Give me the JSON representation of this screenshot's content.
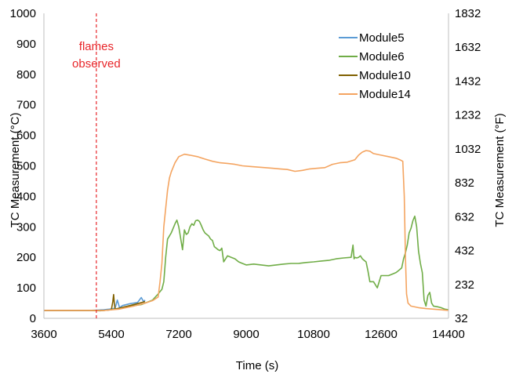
{
  "chart_data": {
    "type": "line",
    "title": "",
    "xlabel": "Time (s)",
    "ylabel": "TC Measurement (°C)",
    "y2label": "TC Measurement (°F)",
    "xlim": [
      3600,
      14400
    ],
    "ylim": [
      0,
      1000
    ],
    "y2lim": [
      32,
      1832
    ],
    "xticks": [
      "3600",
      "5400",
      "7200",
      "9000",
      "10800",
      "12600",
      "14400"
    ],
    "yticks": [
      "0",
      "100",
      "200",
      "300",
      "400",
      "500",
      "600",
      "700",
      "800",
      "900",
      "1000"
    ],
    "y2ticks": [
      "32",
      "232",
      "432",
      "632",
      "832",
      "1032",
      "1232",
      "1432",
      "1632",
      "1832"
    ],
    "grid": false,
    "legend_position": "top-right",
    "annotation": {
      "lines": [
        "flames",
        "observed"
      ],
      "x": 5000,
      "color": "#e8262a"
    },
    "series": [
      {
        "name": "Module5",
        "color": "#5b9bd5",
        "x": [
          3600,
          4800,
          5000,
          5200,
          5350,
          5500,
          5560,
          5620,
          5700,
          5900,
          6100,
          6200,
          6260,
          6300
        ],
        "y": [
          26,
          26,
          27,
          28,
          30,
          33,
          60,
          35,
          42,
          48,
          52,
          68,
          55,
          60
        ]
      },
      {
        "name": "Module6",
        "color": "#70ad47",
        "x": [
          3600,
          4800,
          5100,
          5300,
          5500,
          5800,
          6200,
          6500,
          6650,
          6750,
          6800,
          6850,
          6900,
          7000,
          7100,
          7150,
          7200,
          7300,
          7350,
          7400,
          7450,
          7500,
          7550,
          7600,
          7650,
          7700,
          7750,
          7800,
          7850,
          7900,
          8000,
          8050,
          8100,
          8150,
          8200,
          8250,
          8300,
          8350,
          8400,
          8500,
          8600,
          8700,
          8800,
          8900,
          9000,
          9200,
          9400,
          9600,
          9800,
          10000,
          10200,
          10400,
          10600,
          10800,
          11000,
          11200,
          11400,
          11600,
          11800,
          11850,
          11880,
          11900,
          11950,
          12000,
          12050,
          12100,
          12150,
          12200,
          12250,
          12300,
          12400,
          12500,
          12600,
          12700,
          12800,
          12900,
          13000,
          13050,
          13100,
          13150,
          13200,
          13250,
          13300,
          13350,
          13400,
          13450,
          13500,
          13550,
          13600,
          13650,
          13700,
          13750,
          13800,
          13850,
          13900,
          13950,
          14000,
          14100,
          14200,
          14300,
          14400
        ],
        "y": [
          26,
          26,
          25,
          27,
          30,
          38,
          45,
          60,
          80,
          95,
          120,
          200,
          260,
          280,
          310,
          322,
          300,
          225,
          290,
          275,
          280,
          300,
          310,
          305,
          320,
          322,
          318,
          305,
          290,
          280,
          270,
          260,
          255,
          235,
          230,
          225,
          222,
          230,
          185,
          205,
          200,
          195,
          185,
          180,
          175,
          178,
          175,
          172,
          175,
          178,
          180,
          180,
          183,
          185,
          188,
          190,
          195,
          198,
          200,
          240,
          195,
          200,
          198,
          200,
          205,
          195,
          190,
          185,
          155,
          120,
          120,
          100,
          140,
          140,
          140,
          145,
          150,
          155,
          160,
          165,
          195,
          215,
          240,
          280,
          295,
          320,
          335,
          300,
          220,
          180,
          150,
          60,
          40,
          75,
          85,
          50,
          40,
          38,
          35,
          30,
          28
        ]
      },
      {
        "name": "Module10",
        "color": "#806000",
        "x": [
          3600,
          4800,
          5000,
          5200,
          5300,
          5400,
          5440,
          5460,
          5480,
          5500,
          5560,
          5700,
          5900,
          6100,
          6300
        ],
        "y": [
          26,
          26,
          26,
          26,
          27,
          28,
          55,
          78,
          50,
          30,
          32,
          36,
          42,
          48,
          55
        ]
      },
      {
        "name": "Module14",
        "color": "#f4a460",
        "x": [
          3600,
          4800,
          5200,
          5600,
          6000,
          6300,
          6500,
          6650,
          6700,
          6750,
          6800,
          6850,
          6900,
          6950,
          7000,
          7100,
          7200,
          7350,
          7500,
          7700,
          7900,
          8100,
          8300,
          8500,
          8700,
          8900,
          9100,
          9300,
          9500,
          9700,
          9900,
          10100,
          10300,
          10500,
          10700,
          10900,
          11100,
          11300,
          11500,
          11700,
          11900,
          12000,
          12100,
          12200,
          12300,
          12400,
          12600,
          12800,
          13000,
          13100,
          13180,
          13220,
          13250,
          13280,
          13320,
          13400,
          13600,
          13800,
          14000,
          14200,
          14400
        ],
        "y": [
          26,
          26,
          26,
          30,
          40,
          50,
          58,
          70,
          120,
          180,
          300,
          360,
          420,
          460,
          480,
          510,
          530,
          538,
          535,
          530,
          522,
          515,
          510,
          508,
          505,
          500,
          498,
          496,
          494,
          492,
          490,
          488,
          482,
          485,
          490,
          492,
          494,
          505,
          510,
          512,
          520,
          535,
          545,
          550,
          548,
          540,
          535,
          530,
          525,
          520,
          515,
          400,
          200,
          80,
          50,
          40,
          35,
          32,
          30,
          28,
          26
        ]
      }
    ]
  }
}
